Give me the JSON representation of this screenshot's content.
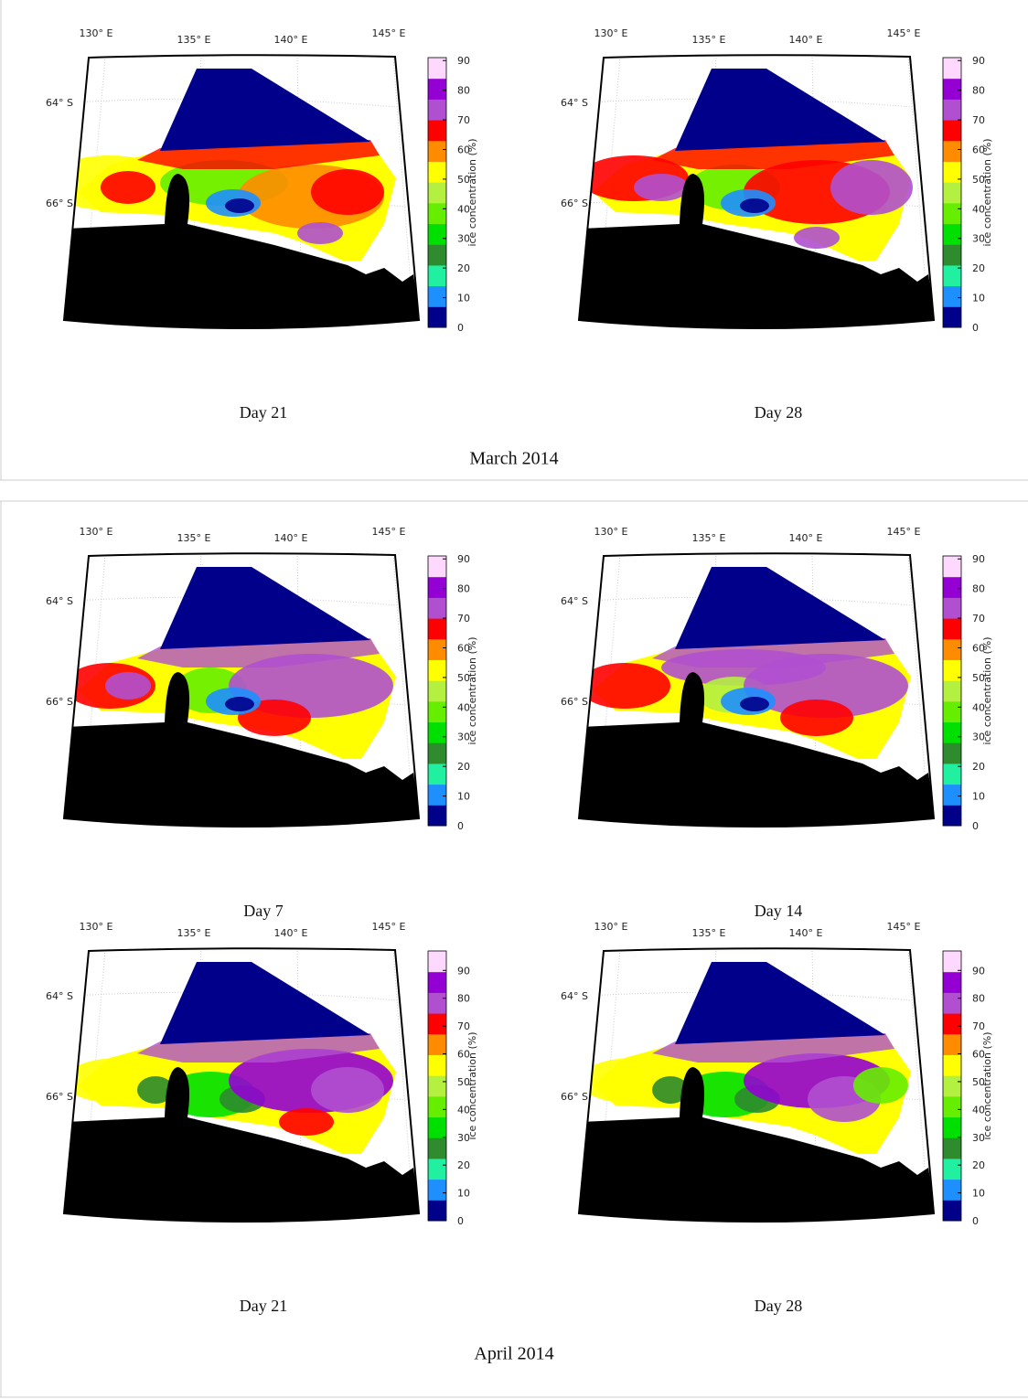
{
  "map_labels": {
    "lon": [
      "130° E",
      "135° E",
      "140° E",
      "145° E"
    ],
    "lat": [
      "64° S",
      "66° S"
    ],
    "colorbar_label": "ice concentration (%)"
  },
  "colormap": [
    "#00008b",
    "#1e8fff",
    "#20f0a0",
    "#2e8b2e",
    "#00e000",
    "#66ee00",
    "#b4f040",
    "#ffff00",
    "#ff8c00",
    "#ff0000",
    "#b050d0",
    "#9400d3",
    "#ffd8ff"
  ],
  "groups": [
    {
      "title": "March 2014",
      "panels": [
        {
          "caption": "Day 21",
          "colorbar": {
            "lim": [
              0,
              91
            ],
            "ticks": [
              0,
              10,
              20,
              30,
              40,
              50,
              60,
              70,
              80,
              90
            ]
          }
        },
        {
          "caption": "Day 28",
          "colorbar": {
            "lim": [
              0,
              91
            ],
            "ticks": [
              0,
              10,
              20,
              30,
              40,
              50,
              60,
              70,
              80,
              90
            ]
          }
        }
      ]
    },
    {
      "title": "April 2014",
      "panels": [
        {
          "caption": "Day 7",
          "colorbar": {
            "lim": [
              0,
              91
            ],
            "ticks": [
              0,
              10,
              20,
              30,
              40,
              50,
              60,
              70,
              80,
              90
            ]
          }
        },
        {
          "caption": "Day 14",
          "colorbar": {
            "lim": [
              0,
              91
            ],
            "ticks": [
              0,
              10,
              20,
              30,
              40,
              50,
              60,
              70,
              80,
              90
            ]
          }
        },
        {
          "caption": "Day 21",
          "colorbar": {
            "lim": [
              0,
              97
            ],
            "ticks": [
              0,
              10,
              20,
              30,
              40,
              50,
              60,
              70,
              80,
              90
            ]
          }
        },
        {
          "caption": "Day 28",
          "colorbar": {
            "lim": [
              0,
              97
            ],
            "ticks": [
              0,
              10,
              20,
              30,
              40,
              50,
              60,
              70,
              80,
              90
            ]
          }
        }
      ]
    }
  ]
}
